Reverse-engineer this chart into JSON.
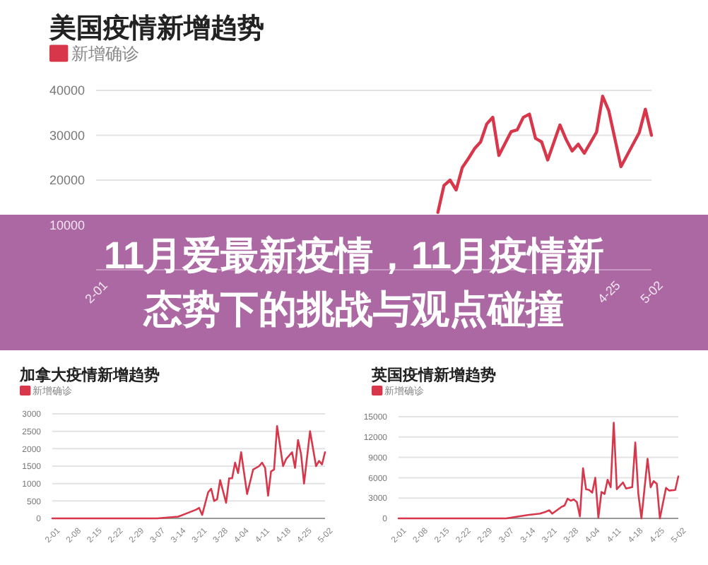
{
  "chart_data": [
    {
      "type": "line",
      "title": "美国疫情新增趋势",
      "legend": "top left",
      "grid": "y",
      "line_style": "solid",
      "xlim": [
        "--02-01",
        "--05-02"
      ],
      "ylim": [
        0,
        40000
      ],
      "yticks": [
        10000,
        20000,
        30000,
        40000
      ],
      "xticks": [
        {
          "value": "--02-01",
          "label": "2-01"
        },
        {
          "value": "--04-25",
          "label": "4-25"
        },
        {
          "value": "--05-02",
          "label": "5-02"
        }
      ],
      "series": [
        {
          "name": "新增确诊",
          "color": "#d8374b",
          "x": [
            "--03-28",
            "--03-29",
            "--03-30",
            "--03-31",
            "--04-01",
            "--04-02",
            "--04-03",
            "--04-04",
            "--04-05",
            "--04-06",
            "--04-07",
            "--04-09",
            "--04-10",
            "--04-11",
            "--04-12",
            "--04-13",
            "--04-14",
            "--04-15",
            "--04-17",
            "--04-18",
            "--04-19",
            "--04-20",
            "--04-21",
            "--04-23",
            "--04-24",
            "--04-25",
            "--04-27",
            "--04-30",
            "--05-01",
            "--05-02"
          ],
          "values": [
            12800,
            18800,
            20000,
            17800,
            22800,
            24800,
            27000,
            28500,
            32500,
            34000,
            25500,
            30800,
            31200,
            34000,
            34700,
            29300,
            28500,
            24500,
            32300,
            29100,
            26500,
            28000,
            26000,
            30700,
            38700,
            35500,
            23000,
            30600,
            35800,
            30000
          ]
        }
      ]
    },
    {
      "type": "other",
      "title": "11月爱最新疫情，11月疫情新态势下的挑战与观点碰撞"
    },
    {
      "type": "line",
      "title": "加拿大疫情新增趋势",
      "legend": "top left",
      "grid": "y",
      "line_style": "solid",
      "xlim": [
        "--02-01",
        "--05-02"
      ],
      "ylim": [
        0,
        3000
      ],
      "yticks": [
        0,
        500,
        1000,
        1500,
        2000,
        2500,
        3000
      ],
      "xticks": [
        {
          "value": "--02-01",
          "label": "2-01"
        },
        {
          "value": "--02-08",
          "label": "2-08"
        },
        {
          "value": "--02-15",
          "label": "2-15"
        },
        {
          "value": "--02-22",
          "label": "2-22"
        },
        {
          "value": "--02-29",
          "label": "2-29"
        },
        {
          "value": "--03-07",
          "label": "3-07"
        },
        {
          "value": "--03-14",
          "label": "3-14"
        },
        {
          "value": "--03-21",
          "label": "3-21"
        },
        {
          "value": "--03-28",
          "label": "3-28"
        },
        {
          "value": "--04-04",
          "label": "4-04"
        },
        {
          "value": "--04-11",
          "label": "4-11"
        },
        {
          "value": "--04-18",
          "label": "4-18"
        },
        {
          "value": "--04-25",
          "label": "4-25"
        },
        {
          "value": "--05-02",
          "label": "5-02"
        }
      ],
      "series": [
        {
          "name": "新增确诊",
          "color": "#d8374b",
          "x": [
            "--02-01",
            "--02-08",
            "--02-15",
            "--02-22",
            "--02-29",
            "--03-07",
            "--03-14",
            "--03-17",
            "--03-20",
            "--03-21",
            "--03-22",
            "--03-24",
            "--03-25",
            "--03-26",
            "--03-27",
            "--03-28",
            "--03-30",
            "--03-31",
            "--04-01",
            "--04-02",
            "--04-03",
            "--04-04",
            "--04-06",
            "--04-08",
            "--04-10",
            "--04-11",
            "--04-12",
            "--04-13",
            "--04-14",
            "--04-15",
            "--04-16",
            "--04-18",
            "--04-19",
            "--04-21",
            "--04-22",
            "--04-23",
            "--04-24",
            "--04-25",
            "--04-27",
            "--04-29",
            "--04-30",
            "--05-01",
            "--05-02"
          ],
          "values": [
            0,
            0,
            0,
            0,
            0,
            0,
            50,
            150,
            250,
            300,
            100,
            750,
            850,
            500,
            550,
            1100,
            450,
            1150,
            1150,
            1600,
            1300,
            1900,
            700,
            1400,
            1500,
            1600,
            1450,
            650,
            1350,
            1400,
            2650,
            1500,
            1700,
            1900,
            1450,
            2250,
            1850,
            1000,
            2500,
            1500,
            1650,
            1550,
            1900
          ]
        }
      ]
    },
    {
      "type": "line",
      "title": "英国疫情新增趋势",
      "legend": "top left",
      "grid": "y",
      "line_style": "solid",
      "xlim": [
        "--02-01",
        "--05-02"
      ],
      "ylim": [
        0,
        15000
      ],
      "yticks": [
        0,
        3000,
        6000,
        9000,
        12000,
        15000
      ],
      "xticks": [
        {
          "value": "--02-01",
          "label": "2-01"
        },
        {
          "value": "--02-08",
          "label": "2-08"
        },
        {
          "value": "--02-15",
          "label": "2-15"
        },
        {
          "value": "--02-22",
          "label": "2-22"
        },
        {
          "value": "--02-29",
          "label": "2-29"
        },
        {
          "value": "--03-07",
          "label": "3-07"
        },
        {
          "value": "--03-14",
          "label": "3-14"
        },
        {
          "value": "--03-21",
          "label": "3-21"
        },
        {
          "value": "--03-28",
          "label": "3-28"
        },
        {
          "value": "--04-04",
          "label": "4-04"
        },
        {
          "value": "--04-11",
          "label": "4-11"
        },
        {
          "value": "--04-18",
          "label": "4-18"
        },
        {
          "value": "--04-25",
          "label": "4-25"
        },
        {
          "value": "--05-02",
          "label": "5-02"
        }
      ],
      "series": [
        {
          "name": "新增确诊",
          "color": "#d8374b",
          "x": [
            "--02-01",
            "--02-08",
            "--02-15",
            "--02-22",
            "--02-29",
            "--03-07",
            "--03-14",
            "--03-18",
            "--03-20",
            "--03-21",
            "--03-22",
            "--03-25",
            "--03-26",
            "--03-27",
            "--03-28",
            "--03-29",
            "--03-30",
            "--03-31",
            "--04-01",
            "--04-02",
            "--04-03",
            "--04-04",
            "--04-05",
            "--04-06",
            "--04-07",
            "--04-08",
            "--04-09",
            "--04-10",
            "--04-11",
            "--04-12",
            "--04-14",
            "--04-15",
            "--04-17",
            "--04-18",
            "--04-19",
            "--04-20",
            "--04-22",
            "--04-23",
            "--04-24",
            "--04-25",
            "--04-26",
            "--04-28",
            "--04-29",
            "--05-01",
            "--05-02"
          ],
          "values": [
            0,
            0,
            0,
            0,
            0,
            0,
            500,
            700,
            1000,
            1200,
            700,
            1700,
            1900,
            2900,
            2600,
            2800,
            2400,
            300,
            7400,
            4300,
            4200,
            3800,
            6000,
            100,
            3900,
            3600,
            5700,
            4600,
            14100,
            4300,
            5300,
            4400,
            4600,
            11200,
            3600,
            0,
            8800,
            4600,
            5500,
            5100,
            0,
            4500,
            4100,
            4200,
            6200
          ]
        }
      ]
    }
  ]
}
